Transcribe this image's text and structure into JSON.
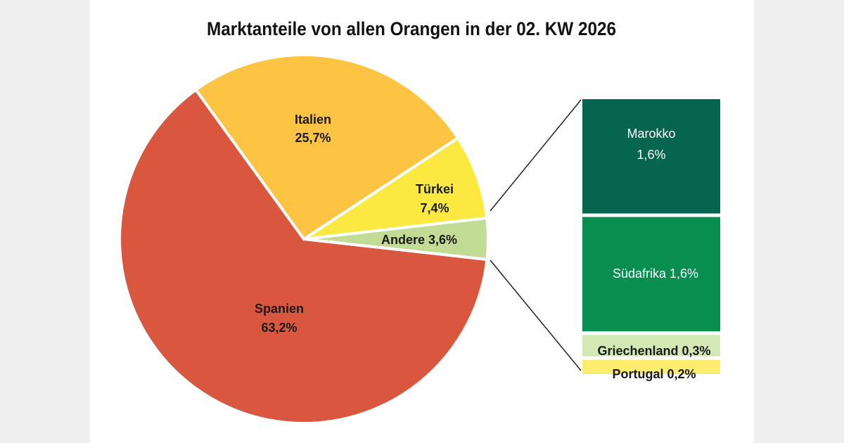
{
  "chart_data": {
    "type": "pie",
    "title": "Marktanteile von allen Orangen in der 02. KW 2026",
    "slices": [
      {
        "label": "Andere",
        "value": 3.6,
        "text": "Andere 3,6%",
        "color": "#c3dc95"
      },
      {
        "label": "Spanien",
        "value": 63.2,
        "text": "63,2%",
        "color": "#d9563f"
      },
      {
        "label": "Italien",
        "value": 25.7,
        "text": "25,7%",
        "color": "#fcc442"
      },
      {
        "label": "Türkei",
        "value": 7.4,
        "text": "7,4%",
        "color": "#fbe942"
      }
    ],
    "breakdown_of": "Andere",
    "breakdown": [
      {
        "label": "Marokko",
        "value": 1.6,
        "text": "1,6%",
        "color": "#06654f"
      },
      {
        "label": "Südafrika",
        "value": 1.6,
        "text": "Südafrika 1,6%",
        "color": "#078e50"
      },
      {
        "label": "Griechenland",
        "value": 0.3,
        "text": "Griechenland 0,3%",
        "color": "#d4e8b6"
      },
      {
        "label": "Portugal",
        "value": 0.2,
        "text": "Portugal 0,2%",
        "color": "#fdec6e"
      }
    ]
  }
}
